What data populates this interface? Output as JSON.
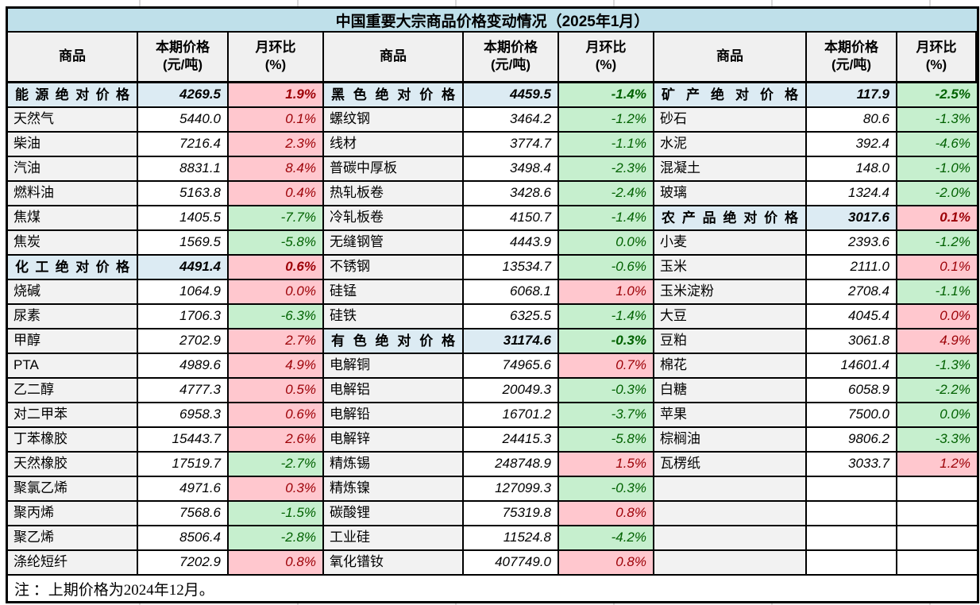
{
  "title": "中国重要大宗商品价格变动情况（2025年1月）",
  "columns": {
    "commodity": "商品",
    "price_line1": "本期价格",
    "price_line2": "(元/吨)",
    "mom_line1": "月环比",
    "mom_line2": "(%)"
  },
  "note": "注 ：上期价格为2024年12月。",
  "colors": {
    "title_bg": "#BFE0EA",
    "section_bg": "#DCEBF3",
    "header_bg": "#F0F0F0",
    "name_bg": "#F2F2F2",
    "up_bg": "#FFC7CE",
    "up_text": "#9C0006",
    "down_bg": "#C6EFCE",
    "down_text": "#006100",
    "border": "#000000"
  },
  "groups": [
    {
      "rows": [
        {
          "name": "能源绝对价格",
          "price": "4269.5",
          "mom": "1.9%",
          "dir": "up",
          "section": true
        },
        {
          "name": "天然气",
          "price": "5440.0",
          "mom": "0.1%",
          "dir": "up",
          "section": false
        },
        {
          "name": "柴油",
          "price": "7216.4",
          "mom": "2.3%",
          "dir": "up",
          "section": false
        },
        {
          "name": "汽油",
          "price": "8831.1",
          "mom": "8.4%",
          "dir": "up",
          "section": false
        },
        {
          "name": "燃料油",
          "price": "5163.8",
          "mom": "0.4%",
          "dir": "up",
          "section": false
        },
        {
          "name": "焦煤",
          "price": "1405.5",
          "mom": "-7.7%",
          "dir": "down",
          "section": false
        },
        {
          "name": "焦炭",
          "price": "1569.5",
          "mom": "-5.8%",
          "dir": "down",
          "section": false
        },
        {
          "name": "化工绝对价格",
          "price": "4491.4",
          "mom": "0.6%",
          "dir": "up",
          "section": true
        },
        {
          "name": "烧碱",
          "price": "1064.9",
          "mom": "0.0%",
          "dir": "up",
          "section": false
        },
        {
          "name": "尿素",
          "price": "1706.3",
          "mom": "-6.3%",
          "dir": "down",
          "section": false
        },
        {
          "name": "甲醇",
          "price": "2702.9",
          "mom": "2.7%",
          "dir": "up",
          "section": false
        },
        {
          "name": "PTA",
          "price": "4989.6",
          "mom": "4.9%",
          "dir": "up",
          "section": false
        },
        {
          "name": "乙二醇",
          "price": "4777.3",
          "mom": "0.5%",
          "dir": "up",
          "section": false
        },
        {
          "name": "对二甲苯",
          "price": "6958.3",
          "mom": "0.6%",
          "dir": "up",
          "section": false
        },
        {
          "name": "丁苯橡胶",
          "price": "15443.7",
          "mom": "2.6%",
          "dir": "up",
          "section": false
        },
        {
          "name": "天然橡胶",
          "price": "17519.7",
          "mom": "-2.7%",
          "dir": "down",
          "section": false
        },
        {
          "name": "聚氯乙烯",
          "price": "4971.6",
          "mom": "0.3%",
          "dir": "up",
          "section": false
        },
        {
          "name": "聚丙烯",
          "price": "7568.6",
          "mom": "-1.5%",
          "dir": "down",
          "section": false
        },
        {
          "name": "聚乙烯",
          "price": "8506.4",
          "mom": "-2.8%",
          "dir": "down",
          "section": false
        },
        {
          "name": "涤纶短纤",
          "price": "7202.9",
          "mom": "0.8%",
          "dir": "up",
          "section": false
        }
      ]
    },
    {
      "rows": [
        {
          "name": "黑色绝对价格",
          "price": "4459.5",
          "mom": "-1.4%",
          "dir": "down",
          "section": true
        },
        {
          "name": "螺纹钢",
          "price": "3464.2",
          "mom": "-1.2%",
          "dir": "down",
          "section": false
        },
        {
          "name": "线材",
          "price": "3774.7",
          "mom": "-1.1%",
          "dir": "down",
          "section": false
        },
        {
          "name": "普碳中厚板",
          "price": "3498.4",
          "mom": "-2.3%",
          "dir": "down",
          "section": false
        },
        {
          "name": "热轧板卷",
          "price": "3428.6",
          "mom": "-2.4%",
          "dir": "down",
          "section": false
        },
        {
          "name": "冷轧板卷",
          "price": "4150.7",
          "mom": "-1.4%",
          "dir": "down",
          "section": false
        },
        {
          "name": "无缝钢管",
          "price": "4443.9",
          "mom": "0.0%",
          "dir": "down",
          "section": false
        },
        {
          "name": "不锈钢",
          "price": "13534.7",
          "mom": "-0.6%",
          "dir": "down",
          "section": false
        },
        {
          "name": "硅锰",
          "price": "6068.1",
          "mom": "1.0%",
          "dir": "up",
          "section": false
        },
        {
          "name": "硅铁",
          "price": "6325.5",
          "mom": "-1.4%",
          "dir": "down",
          "section": false
        },
        {
          "name": "有色绝对价格",
          "price": "31174.6",
          "mom": "-0.3%",
          "dir": "down",
          "section": true
        },
        {
          "name": "电解铜",
          "price": "74965.6",
          "mom": "0.7%",
          "dir": "up",
          "section": false
        },
        {
          "name": "电解铝",
          "price": "20049.3",
          "mom": "-0.3%",
          "dir": "down",
          "section": false
        },
        {
          "name": "电解铅",
          "price": "16701.2",
          "mom": "-3.7%",
          "dir": "down",
          "section": false
        },
        {
          "name": "电解锌",
          "price": "24415.3",
          "mom": "-5.8%",
          "dir": "down",
          "section": false
        },
        {
          "name": "精炼锡",
          "price": "248748.9",
          "mom": "1.5%",
          "dir": "up",
          "section": false
        },
        {
          "name": "精炼镍",
          "price": "127099.3",
          "mom": "-0.3%",
          "dir": "down",
          "section": false
        },
        {
          "name": "碳酸锂",
          "price": "75319.8",
          "mom": "0.8%",
          "dir": "up",
          "section": false
        },
        {
          "name": "工业硅",
          "price": "11524.8",
          "mom": "-4.2%",
          "dir": "down",
          "section": false
        },
        {
          "name": "氧化镨钕",
          "price": "407749.0",
          "mom": "0.8%",
          "dir": "up",
          "section": false
        }
      ]
    },
    {
      "rows": [
        {
          "name": "矿产绝对价格",
          "price": "117.9",
          "mom": "-2.5%",
          "dir": "down",
          "section": true
        },
        {
          "name": "砂石",
          "price": "80.6",
          "mom": "-1.3%",
          "dir": "down",
          "section": false
        },
        {
          "name": "水泥",
          "price": "392.4",
          "mom": "-4.6%",
          "dir": "down",
          "section": false
        },
        {
          "name": "混凝土",
          "price": "148.0",
          "mom": "-1.0%",
          "dir": "down",
          "section": false
        },
        {
          "name": "玻璃",
          "price": "1324.4",
          "mom": "-2.0%",
          "dir": "down",
          "section": false
        },
        {
          "name": "农产品绝对价格",
          "price": "3017.6",
          "mom": "0.1%",
          "dir": "up",
          "section": true
        },
        {
          "name": "小麦",
          "price": "2393.6",
          "mom": "-1.2%",
          "dir": "down",
          "section": false
        },
        {
          "name": "玉米",
          "price": "2111.0",
          "mom": "0.1%",
          "dir": "up",
          "section": false
        },
        {
          "name": "玉米淀粉",
          "price": "2708.4",
          "mom": "-1.1%",
          "dir": "down",
          "section": false
        },
        {
          "name": "大豆",
          "price": "4045.4",
          "mom": "0.0%",
          "dir": "up",
          "section": false
        },
        {
          "name": "豆粕",
          "price": "3061.8",
          "mom": "4.9%",
          "dir": "up",
          "section": false
        },
        {
          "name": "棉花",
          "price": "14601.4",
          "mom": "-1.3%",
          "dir": "down",
          "section": false
        },
        {
          "name": "白糖",
          "price": "6058.9",
          "mom": "-2.2%",
          "dir": "down",
          "section": false
        },
        {
          "name": "苹果",
          "price": "7500.0",
          "mom": "0.0%",
          "dir": "down",
          "section": false
        },
        {
          "name": "棕榈油",
          "price": "9806.2",
          "mom": "-3.3%",
          "dir": "down",
          "section": false
        },
        {
          "name": "瓦楞纸",
          "price": "3033.7",
          "mom": "1.2%",
          "dir": "up",
          "section": false
        },
        {
          "name": "",
          "price": "",
          "mom": "",
          "dir": null,
          "section": false
        },
        {
          "name": "",
          "price": "",
          "mom": "",
          "dir": null,
          "section": false
        },
        {
          "name": "",
          "price": "",
          "mom": "",
          "dir": null,
          "section": false
        },
        {
          "name": "",
          "price": "",
          "mom": "",
          "dir": null,
          "section": false
        }
      ]
    }
  ]
}
